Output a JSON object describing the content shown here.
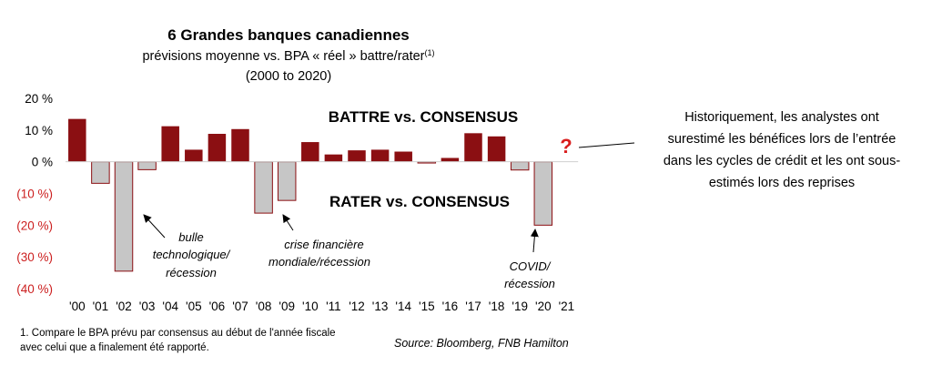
{
  "chart_data": {
    "type": "bar",
    "title": "6 Grandes banques canadiennes",
    "subtitle": "prévisions moyenne vs. BPA « réel » battre/rater",
    "subtitle_superscript": "(1)",
    "period": "(2000 to 2020)",
    "categories": [
      "'00",
      "'01",
      "'02",
      "'03",
      "'04",
      "'05",
      "'06",
      "'07",
      "'08",
      "'09",
      "'10",
      "'11",
      "'12",
      "'13",
      "'14",
      "'15",
      "'16",
      "'17",
      "'18",
      "'19",
      "'20",
      "'21"
    ],
    "values": [
      13.5,
      -6.8,
      -34.5,
      -2.5,
      11.2,
      3.8,
      8.8,
      10.3,
      -16.2,
      -12.2,
      6.2,
      2.3,
      3.6,
      3.8,
      3.2,
      -0.4,
      1.2,
      9.0,
      8.0,
      -2.6,
      -20.0,
      null
    ],
    "y_tick_labels": [
      "20 %",
      "10 %",
      "0 %",
      "(10 %)",
      "(20 %)",
      "(30 %)",
      "(40 %)"
    ],
    "ylim": [
      -40,
      20
    ],
    "grid": false,
    "colors": {
      "positive": "#8b0f12",
      "negative": "#c6c6c6",
      "negative_border": "#8b0f12",
      "negative_label": "#cc1f1f"
    }
  },
  "labels": {
    "beat": "BATTRE vs. CONSENSUS",
    "miss": "RATER vs. CONSENSUS",
    "question_mark": "?"
  },
  "annotations": {
    "bubble": [
      "bulle",
      "technologique/",
      "récession"
    ],
    "crisis": [
      "crise financière",
      "mondiale/récession"
    ],
    "covid": [
      "COVID/",
      "récession"
    ]
  },
  "side_note": [
    "Historiquement, les analystes ont",
    "surestimé les bénéfices lors de l’entrée",
    "dans les cycles de crédit et les ont sous-",
    "estimés lors des reprises"
  ],
  "footnote": [
    "1. Compare le BPA prévu par consensus au début de l'année fiscale",
    "avec celui que a finalement été rapporté."
  ],
  "source": "Source: Bloomberg, FNB Hamilton"
}
